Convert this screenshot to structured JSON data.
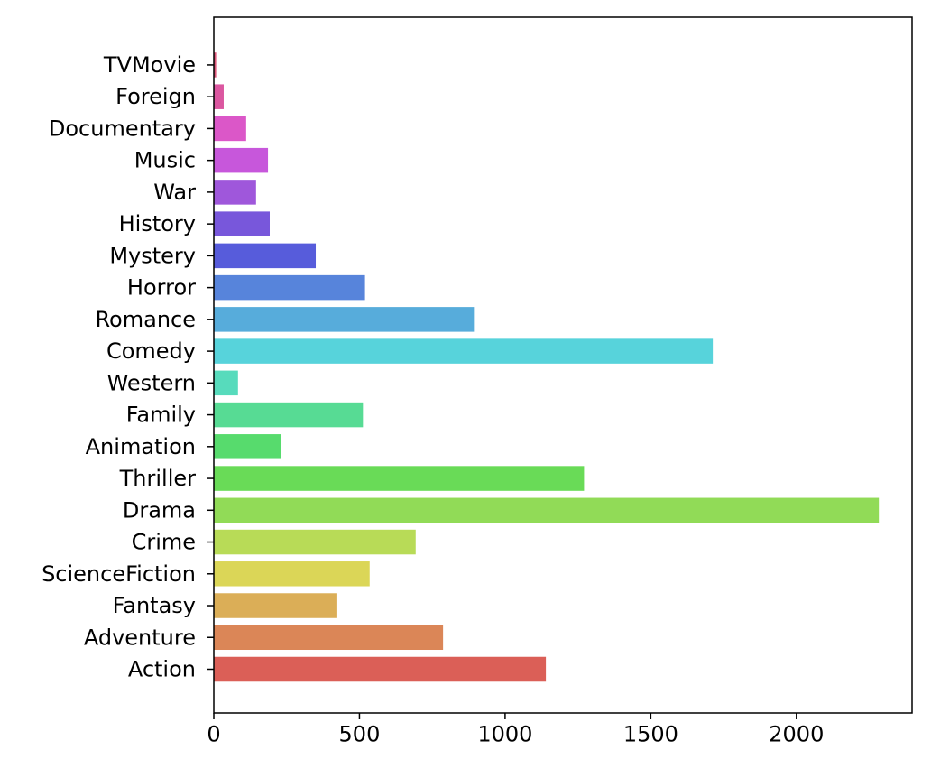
{
  "chart_data": {
    "type": "bar",
    "orientation": "horizontal",
    "categories": [
      "Action",
      "Adventure",
      "Fantasy",
      "ScienceFiction",
      "Crime",
      "Drama",
      "Thriller",
      "Animation",
      "Family",
      "Western",
      "Comedy",
      "Romance",
      "Horror",
      "Mystery",
      "History",
      "War",
      "Music",
      "Documentary",
      "Foreign",
      "TVMovie"
    ],
    "values": [
      1140,
      787,
      424,
      535,
      693,
      2283,
      1271,
      232,
      512,
      83,
      1713,
      893,
      519,
      350,
      192,
      145,
      186,
      111,
      34,
      8
    ],
    "colors": [
      "#db5f57",
      "#db8657",
      "#dbae57",
      "#dbd657",
      "#b8db57",
      "#91db57",
      "#69db57",
      "#57db6d",
      "#57db94",
      "#57dbbc",
      "#57d3db",
      "#57acdb",
      "#5784db",
      "#575cdb",
      "#7857db",
      "#9f57db",
      "#c757db",
      "#db57c8",
      "#db57a0",
      "#db5779"
    ],
    "xticks": [
      "0",
      "500",
      "1000",
      "1500",
      "2000"
    ],
    "xlim": [
      0,
      2397
    ],
    "title": "",
    "xlabel": "",
    "ylabel": "",
    "grid": false,
    "legend": false
  }
}
